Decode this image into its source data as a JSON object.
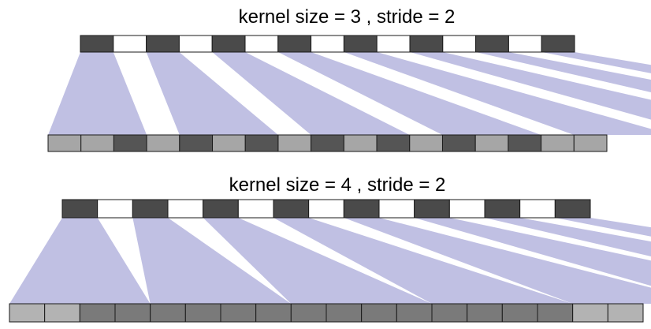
{
  "panels": [
    {
      "title": "kernel size = 3 , stride = 2",
      "kernel_size": 3,
      "stride": 2,
      "input_cells": 15,
      "output_cells": 17,
      "input_pattern": [
        "dark",
        "white"
      ],
      "output_pattern": [
        "light",
        "light",
        "dark",
        "light",
        "dark",
        "light",
        "dark",
        "light",
        "dark",
        "light",
        "dark",
        "light",
        "dark",
        "light",
        "dark",
        "light",
        "light"
      ]
    },
    {
      "title": "kernel size = 4 , stride = 2",
      "kernel_size": 4,
      "stride": 2,
      "input_cells": 15,
      "output_cells": 18,
      "input_pattern": [
        "dark",
        "white"
      ],
      "output_pattern": [
        "light",
        "light",
        "dark",
        "dark",
        "dark",
        "dark",
        "dark",
        "dark",
        "dark",
        "dark",
        "dark",
        "dark",
        "dark",
        "dark",
        "dark",
        "dark",
        "light",
        "light"
      ]
    }
  ],
  "colors": {
    "dark_cell": "#4a4a4a",
    "white_cell": "#ffffff",
    "out_light_1": "#a6a6a6",
    "out_dark_1": "#555555",
    "out_light_2": "#b3b3b3",
    "out_dark_2": "#7a7a7a",
    "cone": "#8c8ccc",
    "cell_border": "#1a1a1a"
  }
}
